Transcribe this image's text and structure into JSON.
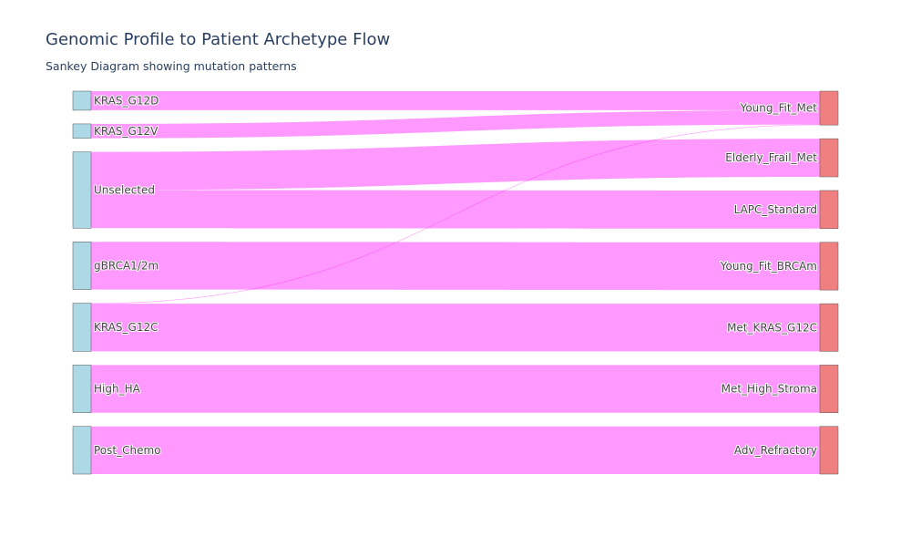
{
  "title": "Genomic Profile to Patient Archetype Flow",
  "subtitle": "Sankey Diagram showing mutation patterns",
  "colors": {
    "source_node": "#add8e6",
    "target_node": "#f08080",
    "link": "#ff00ff",
    "link_opacity": 0.4,
    "node_border": "#555555"
  },
  "chart_data": {
    "type": "sankey",
    "sources": [
      "KRAS_G12D",
      "KRAS_G12V",
      "Unselected",
      "gBRCA1/2m",
      "KRAS_G12C",
      "High_HA",
      "Post_Chemo"
    ],
    "targets": [
      "Young_Fit_Met",
      "Elderly_Frail_Met",
      "LAPC_Standard",
      "Young_Fit_BRCAm",
      "Met_KRAS_G12C",
      "Met_High_Stroma",
      "Adv_Refractory"
    ],
    "links": [
      {
        "source": "KRAS_G12D",
        "target": "Young_Fit_Met",
        "value": 20
      },
      {
        "source": "KRAS_G12V",
        "target": "Young_Fit_Met",
        "value": 15
      },
      {
        "source": "KRAS_G12C",
        "target": "Young_Fit_Met",
        "value": 0.5
      },
      {
        "source": "Unselected",
        "target": "Elderly_Frail_Met",
        "value": 40
      },
      {
        "source": "Unselected",
        "target": "LAPC_Standard",
        "value": 40
      },
      {
        "source": "gBRCA1/2m",
        "target": "Young_Fit_BRCAm",
        "value": 50
      },
      {
        "source": "KRAS_G12C",
        "target": "Met_KRAS_G12C",
        "value": 50
      },
      {
        "source": "High_HA",
        "target": "Met_High_Stroma",
        "value": 50
      },
      {
        "source": "Post_Chemo",
        "target": "Adv_Refractory",
        "value": 50
      }
    ]
  }
}
